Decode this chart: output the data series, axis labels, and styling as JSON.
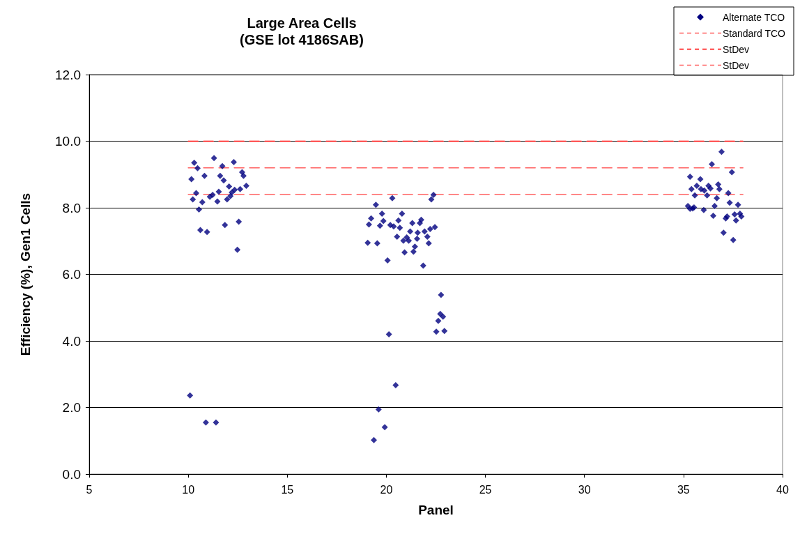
{
  "chart_data": {
    "type": "scatter",
    "title": "Large Area Cells\n(GSE lot 4186SAB)",
    "xlabel": "Panel",
    "ylabel": "Efficiency (%), Gen1 Cells",
    "xlim": [
      5,
      40
    ],
    "xticks": [
      5,
      10,
      15,
      20,
      25,
      30,
      35,
      40
    ],
    "ylim": [
      0,
      12
    ],
    "yticks": [
      {
        "value": 0,
        "label": "0.0"
      },
      {
        "value": 2,
        "label": "2.0"
      },
      {
        "value": 4,
        "label": "4.0"
      },
      {
        "value": 6,
        "label": "6.0"
      },
      {
        "value": 8,
        "label": "8.0"
      },
      {
        "value": 10,
        "label": "10.0"
      },
      {
        "value": 12,
        "label": "12.0"
      }
    ],
    "grid": "y",
    "legend": "top right",
    "series": [
      {
        "name": "Alternate TCO",
        "marker": "diamond",
        "color": "#000080",
        "x": [
          10.3,
          11.3,
          12.3,
          10.47,
          11.72,
          10.16,
          10.82,
          11.61,
          11.79,
          12.72,
          12.79,
          12.06,
          12.93,
          12.62,
          12.34,
          12.2,
          10.4,
          10.23,
          11.23,
          11.09,
          11.54,
          10.71,
          11.47,
          11.96,
          12.13,
          10.54,
          12.55,
          11.85,
          10.61,
          10.95,
          12.48,
          10.09,
          10.89,
          11.4,
          19.47,
          20.3,
          22.38,
          22.27,
          19.78,
          20.79,
          19.23,
          20.61,
          19.85,
          21.76,
          19.12,
          19.68,
          20.2,
          20.37,
          20.68,
          21.31,
          21.69,
          22.21,
          22.45,
          21.2,
          21.93,
          21.58,
          20.54,
          22.07,
          21.03,
          20.86,
          21.13,
          21.55,
          19.06,
          19.54,
          22.14,
          21.44,
          20.92,
          21.37,
          20.06,
          21.86,
          22.76,
          22.72,
          22.86,
          22.62,
          22.52,
          22.93,
          20.13,
          20.47,
          19.61,
          19.92,
          19.37,
          36.92,
          36.43,
          37.44,
          35.85,
          35.67,
          36.26,
          36.75,
          35.88,
          36.36,
          36.81,
          36.05,
          36.19,
          35.57,
          37.26,
          36.68,
          37.33,
          37.75,
          36.57,
          35.53,
          36.02,
          36.5,
          37.58,
          37.85,
          37.92,
          37.2,
          37.13,
          37.65,
          37.02,
          37.51,
          35.33,
          35.4,
          35.22,
          35.33,
          35.46
        ],
        "values": [
          9.35,
          9.49,
          9.37,
          9.19,
          9.25,
          8.86,
          8.96,
          8.96,
          8.82,
          9.07,
          8.96,
          8.64,
          8.66,
          8.56,
          8.54,
          8.46,
          8.44,
          8.25,
          8.39,
          8.33,
          8.48,
          8.17,
          8.19,
          8.25,
          8.35,
          7.95,
          7.58,
          7.48,
          7.33,
          7.27,
          6.74,
          2.36,
          1.55,
          1.55,
          8.09,
          8.29,
          8.39,
          8.25,
          7.82,
          7.82,
          7.68,
          7.62,
          7.6,
          7.64,
          7.5,
          7.46,
          7.48,
          7.44,
          7.4,
          7.54,
          7.54,
          7.36,
          7.42,
          7.29,
          7.29,
          7.25,
          7.13,
          7.13,
          7.11,
          7.01,
          7.01,
          7.07,
          6.95,
          6.93,
          6.93,
          6.83,
          6.66,
          6.68,
          6.42,
          6.26,
          5.38,
          4.81,
          4.73,
          4.6,
          4.28,
          4.3,
          4.2,
          2.67,
          1.94,
          1.41,
          1.02,
          9.68,
          9.31,
          9.07,
          8.86,
          8.66,
          8.66,
          8.7,
          8.56,
          8.58,
          8.56,
          8.52,
          8.37,
          8.37,
          8.44,
          8.29,
          8.15,
          8.09,
          8.05,
          8.01,
          7.93,
          7.76,
          7.8,
          7.82,
          7.74,
          7.74,
          7.68,
          7.62,
          7.25,
          7.03,
          8.93,
          8.56,
          8.05,
          7.97,
          7.98
        ]
      },
      {
        "name": "Standard TCO",
        "type": "line",
        "color": "#ff6060",
        "line_style": "dashed",
        "x": [
          10,
          38
        ],
        "values": [
          9.2,
          9.2
        ]
      },
      {
        "name": "StDev",
        "type": "line",
        "color": "#ff0000",
        "line_style": "dashed",
        "x": [
          10,
          38
        ],
        "values": [
          10.0,
          10.0
        ]
      },
      {
        "name": "StDev",
        "type": "line",
        "color": "#ff6060",
        "line_style": "dashed",
        "x": [
          10,
          38
        ],
        "values": [
          8.4,
          8.4
        ]
      }
    ]
  }
}
